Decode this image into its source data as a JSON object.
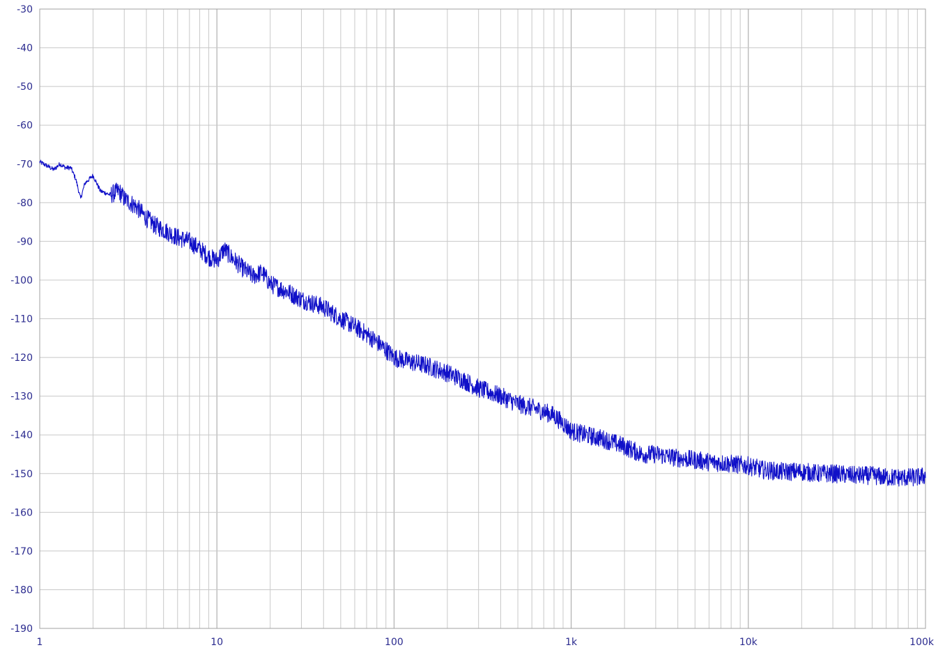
{
  "colors": {
    "background": "#ffffff",
    "grid": "#c8c8c8",
    "axis": "#a0a0a0",
    "series": "#1010c8",
    "tick_text": "#2b2b8f"
  },
  "chart_data": {
    "type": "line",
    "title": "",
    "xlabel": "",
    "ylabel": "",
    "x_scale": "log",
    "xlim": [
      1,
      100000
    ],
    "ylim": [
      -190,
      -30
    ],
    "grid": true,
    "legend": "none",
    "x_ticks": [
      {
        "value": 1,
        "label": "1"
      },
      {
        "value": 10,
        "label": "10"
      },
      {
        "value": 100,
        "label": "100"
      },
      {
        "value": 1000,
        "label": "1k"
      },
      {
        "value": 10000,
        "label": "10k"
      },
      {
        "value": 100000,
        "label": "100k"
      }
    ],
    "y_ticks": [
      {
        "value": -30,
        "label": "-30"
      },
      {
        "value": -40,
        "label": "-40"
      },
      {
        "value": -50,
        "label": "-50"
      },
      {
        "value": -60,
        "label": "-60"
      },
      {
        "value": -70,
        "label": "-70"
      },
      {
        "value": -80,
        "label": "-80"
      },
      {
        "value": -90,
        "label": "-90"
      },
      {
        "value": -100,
        "label": "-100"
      },
      {
        "value": -110,
        "label": "-110"
      },
      {
        "value": -120,
        "label": "-120"
      },
      {
        "value": -130,
        "label": "-130"
      },
      {
        "value": -140,
        "label": "-140"
      },
      {
        "value": -150,
        "label": "-150"
      },
      {
        "value": -160,
        "label": "-160"
      },
      {
        "value": -170,
        "label": "-170"
      },
      {
        "value": -180,
        "label": "-180"
      },
      {
        "value": -190,
        "label": "-190"
      }
    ],
    "series": [
      {
        "x": [
          1,
          1.1,
          1.2,
          1.3,
          1.4,
          1.5,
          1.6,
          1.7,
          1.8,
          2,
          2.2,
          2.5,
          2.8,
          3,
          3.5,
          4,
          4.5,
          5,
          6,
          7,
          8,
          9,
          10,
          11,
          12,
          14,
          16,
          18,
          20,
          25,
          30,
          40,
          50,
          60,
          70,
          80,
          90,
          100,
          120,
          150,
          200,
          250,
          300,
          400,
          500,
          600,
          700,
          800,
          900,
          1000,
          1200,
          1500,
          2000,
          2500,
          3000,
          4000,
          5000,
          6000,
          8000,
          10000,
          12000,
          15000,
          20000,
          25000,
          30000,
          40000,
          50000,
          60000,
          70000,
          80000,
          90000,
          100000
        ],
        "y": [
          -69.5,
          -70.5,
          -71.5,
          -70,
          -71,
          -71,
          -74,
          -79,
          -75,
          -73,
          -77,
          -78,
          -77,
          -79,
          -81,
          -84,
          -86,
          -87,
          -89,
          -90,
          -92,
          -94,
          -95,
          -92,
          -94,
          -97,
          -99,
          -98,
          -101,
          -103,
          -105,
          -107,
          -110,
          -112,
          -114,
          -116,
          -118,
          -120,
          -121,
          -122,
          -124,
          -126,
          -128,
          -130,
          -132,
          -133,
          -134,
          -135,
          -137,
          -139,
          -140,
          -141,
          -143,
          -145,
          -145,
          -146,
          -146.5,
          -147,
          -147.5,
          -148,
          -149,
          -149.5,
          -149.5,
          -150,
          -150,
          -150.5,
          -150.5,
          -151,
          -151,
          -151,
          -151,
          -150.5
        ]
      }
    ]
  }
}
